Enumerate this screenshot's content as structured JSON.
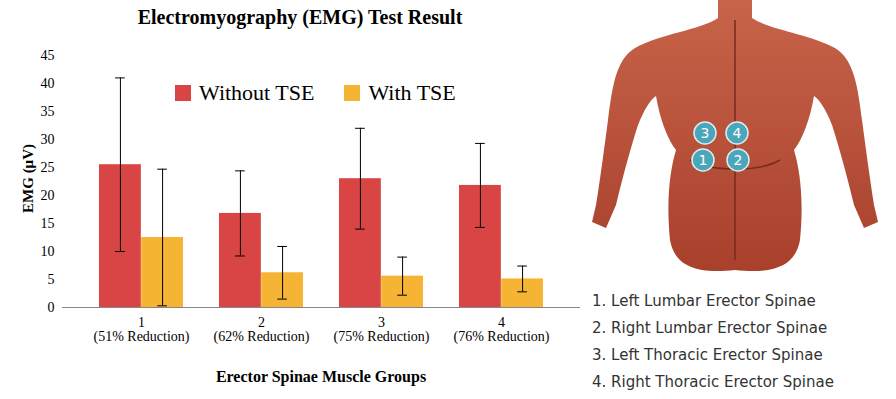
{
  "chart_data": {
    "type": "bar",
    "title": "Electromyography (EMG) Test Result",
    "x_label": "Erector Spinae Muscle Groups",
    "y_label": "EMG (μV)",
    "categories": [
      "1",
      "2",
      "3",
      "4"
    ],
    "category_notes": [
      "(51% Reduction)",
      "(62% Reduction)",
      "(75% Reduction)",
      "(76% Reduction)"
    ],
    "series": [
      {
        "name": "Without TSE",
        "color": "#d94545",
        "values": [
          25.5,
          16.8,
          23,
          21.8
        ],
        "errors": [
          15.5,
          7.6,
          9,
          7.5
        ]
      },
      {
        "name": "With TSE",
        "color": "#f5b433",
        "values": [
          12.5,
          6.2,
          5.6,
          5.1
        ],
        "errors": [
          12.2,
          4.7,
          3.4,
          2.3
        ]
      }
    ],
    "ylim": [
      0,
      45
    ],
    "yticks": [
      0,
      5,
      10,
      15,
      20,
      25,
      30,
      35,
      40,
      45
    ],
    "grid": false,
    "legend": "top",
    "tick_labels": true
  },
  "diagram": {
    "markers": [
      "1",
      "2",
      "3",
      "4"
    ],
    "key": [
      "1. Left Lumbar Erector Spinae",
      "2. Right Lumbar Erector Spinae",
      "3. Left Thoracic Erector Spinae",
      "4. Right Thoracic Erector Spinae"
    ]
  }
}
